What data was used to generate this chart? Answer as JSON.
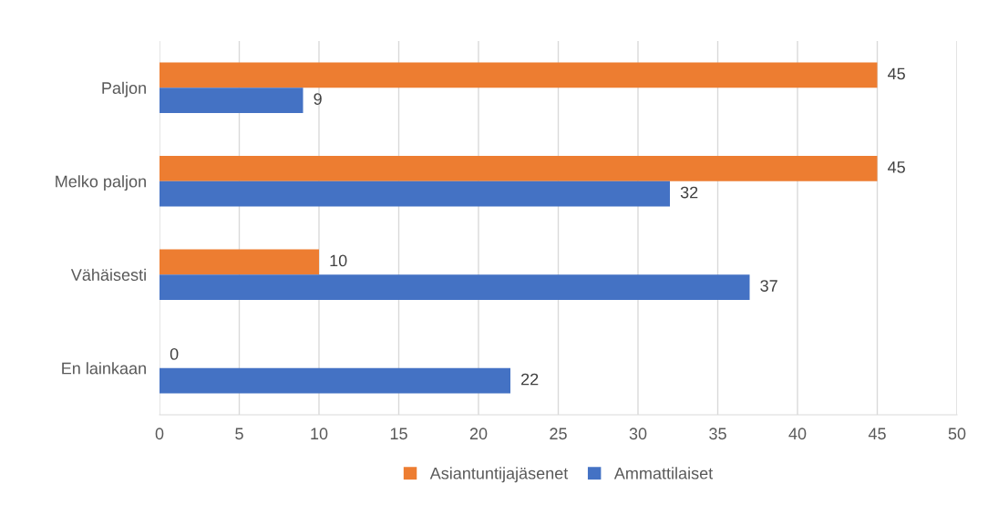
{
  "chart_data": {
    "type": "bar",
    "orientation": "horizontal",
    "categories": [
      "Paljon",
      "Melko paljon",
      "Vähäisesti",
      "En lainkaan"
    ],
    "series": [
      {
        "name": "Asiantuntijajäsenet",
        "color": "#ed7d31",
        "values": [
          45,
          45,
          10,
          0
        ]
      },
      {
        "name": "Ammattilaiset",
        "color": "#4472c4",
        "values": [
          9,
          32,
          37,
          22
        ]
      }
    ],
    "xlim": [
      0,
      50
    ],
    "xticks": [
      0,
      5,
      10,
      15,
      20,
      25,
      30,
      35,
      40,
      45,
      50
    ],
    "grid": "x",
    "legend": "bottom",
    "data_labels": true
  }
}
